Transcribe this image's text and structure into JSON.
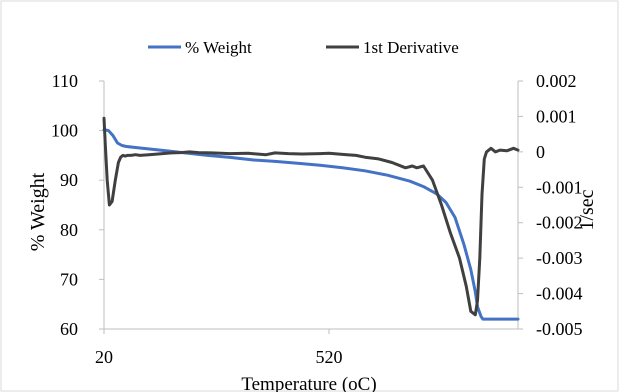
{
  "chart_data": {
    "type": "line",
    "title": "",
    "xlabel": "Temperature (oC)",
    "ylabel": "% Weight",
    "y2label": "1/sec",
    "xlim": [
      20,
      940
    ],
    "ylim": [
      60,
      110
    ],
    "y2lim": [
      -0.005,
      0.002
    ],
    "x_ticks": [
      "20",
      "520"
    ],
    "x_tick_values": [
      20,
      520
    ],
    "y_ticks": [
      "110",
      "100",
      "90",
      "80",
      "70",
      "60"
    ],
    "y_tick_values": [
      110,
      100,
      90,
      80,
      70,
      60
    ],
    "y2_ticks": [
      "0.002",
      "0.001",
      "0",
      "-0.001",
      "-0.002",
      "-0.003",
      "-0.004",
      "-0.005"
    ],
    "y2_tick_values": [
      0.002,
      0.001,
      0,
      -0.001,
      -0.002,
      -0.003,
      -0.004,
      -0.005
    ],
    "grid": false,
    "legend": "top",
    "series": [
      {
        "name": "% Weight",
        "axis": "left",
        "color": "#4472C4",
        "x": [
          20,
          30,
          40,
          50,
          60,
          70,
          100,
          150,
          200,
          250,
          300,
          350,
          400,
          450,
          500,
          550,
          600,
          650,
          700,
          730,
          760,
          780,
          800,
          820,
          835,
          845,
          850,
          855,
          858,
          862,
          870,
          900,
          940
        ],
        "y": [
          100.2,
          100,
          99,
          97.5,
          97,
          96.8,
          96.5,
          96,
          95.5,
          95,
          94.6,
          94.1,
          93.8,
          93.4,
          93,
          92.5,
          91.9,
          91,
          89.8,
          88.7,
          87.2,
          85.5,
          82.5,
          77,
          72,
          67.5,
          64.5,
          63.2,
          62.5,
          62,
          62,
          62,
          62
        ]
      },
      {
        "name": "1st Derivative",
        "axis": "right",
        "color": "#404040",
        "x": [
          20,
          23,
          27,
          32,
          38,
          45,
          52,
          57,
          62,
          67,
          72,
          80,
          90,
          100,
          120,
          150,
          170,
          190,
          210,
          230,
          260,
          300,
          340,
          380,
          400,
          430,
          460,
          500,
          520,
          540,
          560,
          580,
          600,
          630,
          660,
          690,
          705,
          715,
          730,
          750,
          770,
          790,
          810,
          825,
          835,
          845,
          850,
          855,
          860,
          865,
          870,
          880,
          890,
          900,
          915,
          930,
          940
        ],
        "y": [
          0.00095,
          0.0002,
          -0.0008,
          -0.0015,
          -0.0014,
          -0.0008,
          -0.0003,
          -0.00015,
          -0.0001,
          -0.00012,
          -0.0001,
          -0.0001,
          -8e-05,
          -0.0001,
          -8e-05,
          -5e-05,
          -3e-05,
          -2e-05,
          0,
          -2e-05,
          -3e-05,
          -5e-05,
          -4e-05,
          -8e-05,
          -3e-05,
          -5e-05,
          -6e-05,
          -5e-05,
          -4e-05,
          -6e-05,
          -8e-05,
          -0.0001,
          -0.00015,
          -0.0002,
          -0.0003,
          -0.00045,
          -0.0004,
          -0.00045,
          -0.0004,
          -0.0008,
          -0.0015,
          -0.0023,
          -0.003,
          -0.0038,
          -0.0045,
          -0.0046,
          -0.0042,
          -0.003,
          -0.0012,
          -0.0002,
          0,
          0.0001,
          0,
          5e-05,
          3e-05,
          0.0001,
          5e-05
        ]
      }
    ]
  }
}
